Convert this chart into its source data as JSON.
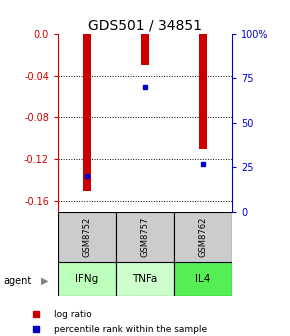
{
  "title": "GDS501 / 34851",
  "samples": [
    "GSM8752",
    "GSM8757",
    "GSM8762"
  ],
  "agents": [
    "IFNg",
    "TNFa",
    "IL4"
  ],
  "log_ratios": [
    -0.15,
    -0.03,
    -0.11
  ],
  "percentile_ranks": [
    20.0,
    70.0,
    27.0
  ],
  "ylim_left": [
    -0.17,
    0.0
  ],
  "ylim_right": [
    0.0,
    100.0
  ],
  "yticks_left": [
    0.0,
    -0.04,
    -0.08,
    -0.12,
    -0.16
  ],
  "yticks_right": [
    0,
    25,
    50,
    75,
    100
  ],
  "bar_color": "#cc0000",
  "dot_color": "#0000cc",
  "agent_colors": [
    "#bbffbb",
    "#ccffcc",
    "#55ee55"
  ],
  "sample_box_color": "#cccccc",
  "legend_log_label": "log ratio",
  "legend_pct_label": "percentile rank within the sample",
  "title_fontsize": 10,
  "tick_fontsize": 7,
  "bar_width": 0.15
}
